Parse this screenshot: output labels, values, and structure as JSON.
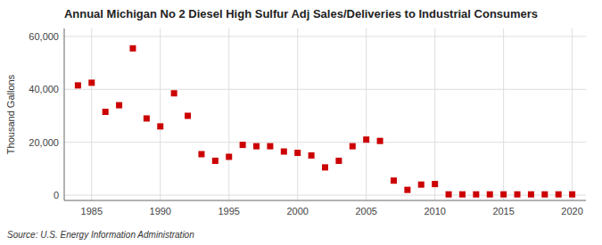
{
  "chart_data": {
    "type": "scatter",
    "title": "Annual Michigan No 2 Diesel High Sulfur Adj Sales/Deliveries to Industrial Consumers",
    "ylabel": "Thousand Gallons",
    "annotations": [
      "Source: U.S. Energy Information Administration"
    ],
    "x": [
      1984,
      1985,
      1986,
      1987,
      1988,
      1989,
      1990,
      1991,
      1992,
      1993,
      1994,
      1995,
      1996,
      1997,
      1998,
      1999,
      2000,
      2001,
      2002,
      2003,
      2004,
      2005,
      2006,
      2007,
      2008,
      2009,
      2010,
      2011,
      2012,
      2013,
      2014,
      2015,
      2016,
      2017,
      2018,
      2019,
      2020
    ],
    "values": [
      41500,
      42500,
      31500,
      34000,
      55500,
      29000,
      26000,
      38500,
      30000,
      15500,
      13000,
      14500,
      19000,
      18500,
      18500,
      16500,
      16000,
      15000,
      10500,
      13000,
      18500,
      21000,
      20500,
      5500,
      2000,
      4000,
      4200,
      300,
      300,
      300,
      300,
      300,
      300,
      300,
      300,
      300,
      300
    ],
    "color": "#cc0000",
    "marker": "square",
    "xlim": [
      1983,
      2021
    ],
    "xticks": [
      1985,
      1990,
      1995,
      2000,
      2005,
      2010,
      2015,
      2020
    ],
    "ylim": [
      -2000,
      63000
    ],
    "yticks": [
      0,
      {
        "value": 20000,
        "label": "20,000"
      },
      {
        "value": 40000,
        "label": "40,000"
      },
      {
        "value": 60000,
        "label": "60,000"
      }
    ],
    "grid": true
  }
}
